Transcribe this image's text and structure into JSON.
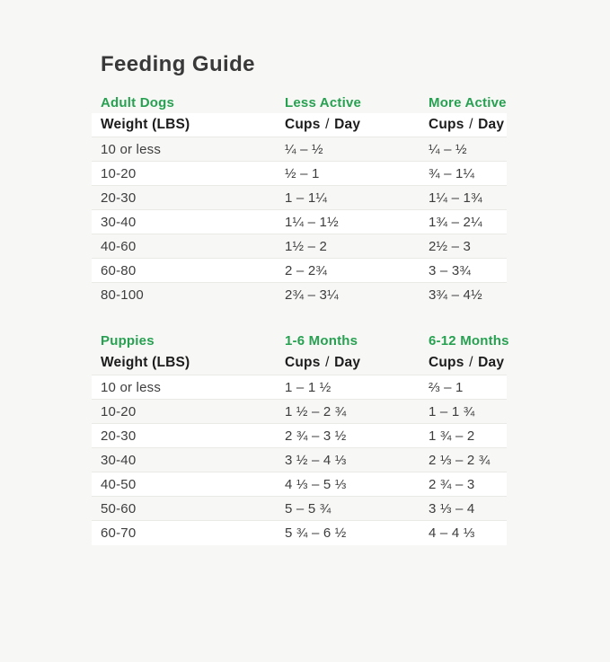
{
  "page": {
    "title": "Feeding Guide"
  },
  "colors": {
    "accent_green": "#27A151",
    "background": "#F7F7F6",
    "row_white": "#FFFFFF",
    "header_text": "#1C1C1C",
    "body_text": "#3D3D3D"
  },
  "chart_data": [
    {
      "type": "table",
      "section_label": "Adult Dogs",
      "col2_label": "Less Active",
      "col3_label": "More Active",
      "header": {
        "col1": "Weight (LBS)",
        "cups_word": "Cups",
        "slash": "/",
        "day_word": "Day"
      },
      "rows": [
        {
          "weight": "10 or less",
          "col2": "¼ – ½",
          "col3": "¼ – ½"
        },
        {
          "weight": "10-20",
          "col2": "½ – 1",
          "col3": "¾ – 1¼"
        },
        {
          "weight": "20-30",
          "col2": "1 – 1¼",
          "col3": "1¼ – 1¾"
        },
        {
          "weight": "30-40",
          "col2": "1¼ – 1½",
          "col3": "1¾ – 2¼"
        },
        {
          "weight": "40-60",
          "col2": "1½ – 2",
          "col3": "2½ – 3"
        },
        {
          "weight": "60-80",
          "col2": "2 – 2¾",
          "col3": "3 – 3¾"
        },
        {
          "weight": "80-100",
          "col2": "2¾ – 3¼",
          "col3": "3¾ – 4½"
        }
      ]
    },
    {
      "type": "table",
      "section_label": "Puppies",
      "col2_label": "1-6 Months",
      "col3_label": "6-12 Months",
      "header": {
        "col1": "Weight (LBS)",
        "cups_word": "Cups",
        "slash": "/",
        "day_word": "Day"
      },
      "rows": [
        {
          "weight": "10 or less",
          "col2": "1 – 1 ½",
          "col3": "⅔ – 1"
        },
        {
          "weight": "10-20",
          "col2": "1 ½ – 2 ¾",
          "col3": "1 – 1 ¾"
        },
        {
          "weight": "20-30",
          "col2": "2 ¾ – 3 ½",
          "col3": "1 ¾ – 2"
        },
        {
          "weight": "30-40",
          "col2": "3 ½ – 4 ⅓",
          "col3": "2 ⅓ – 2 ¾"
        },
        {
          "weight": "40-50",
          "col2": "4 ⅓ – 5 ⅓",
          "col3": "2 ¾ – 3"
        },
        {
          "weight": "50-60",
          "col2": "5 – 5 ¾",
          "col3": "3 ⅓ – 4"
        },
        {
          "weight": "60-70",
          "col2": "5 ¾ – 6 ½",
          "col3": "4 – 4 ⅓"
        }
      ]
    }
  ]
}
